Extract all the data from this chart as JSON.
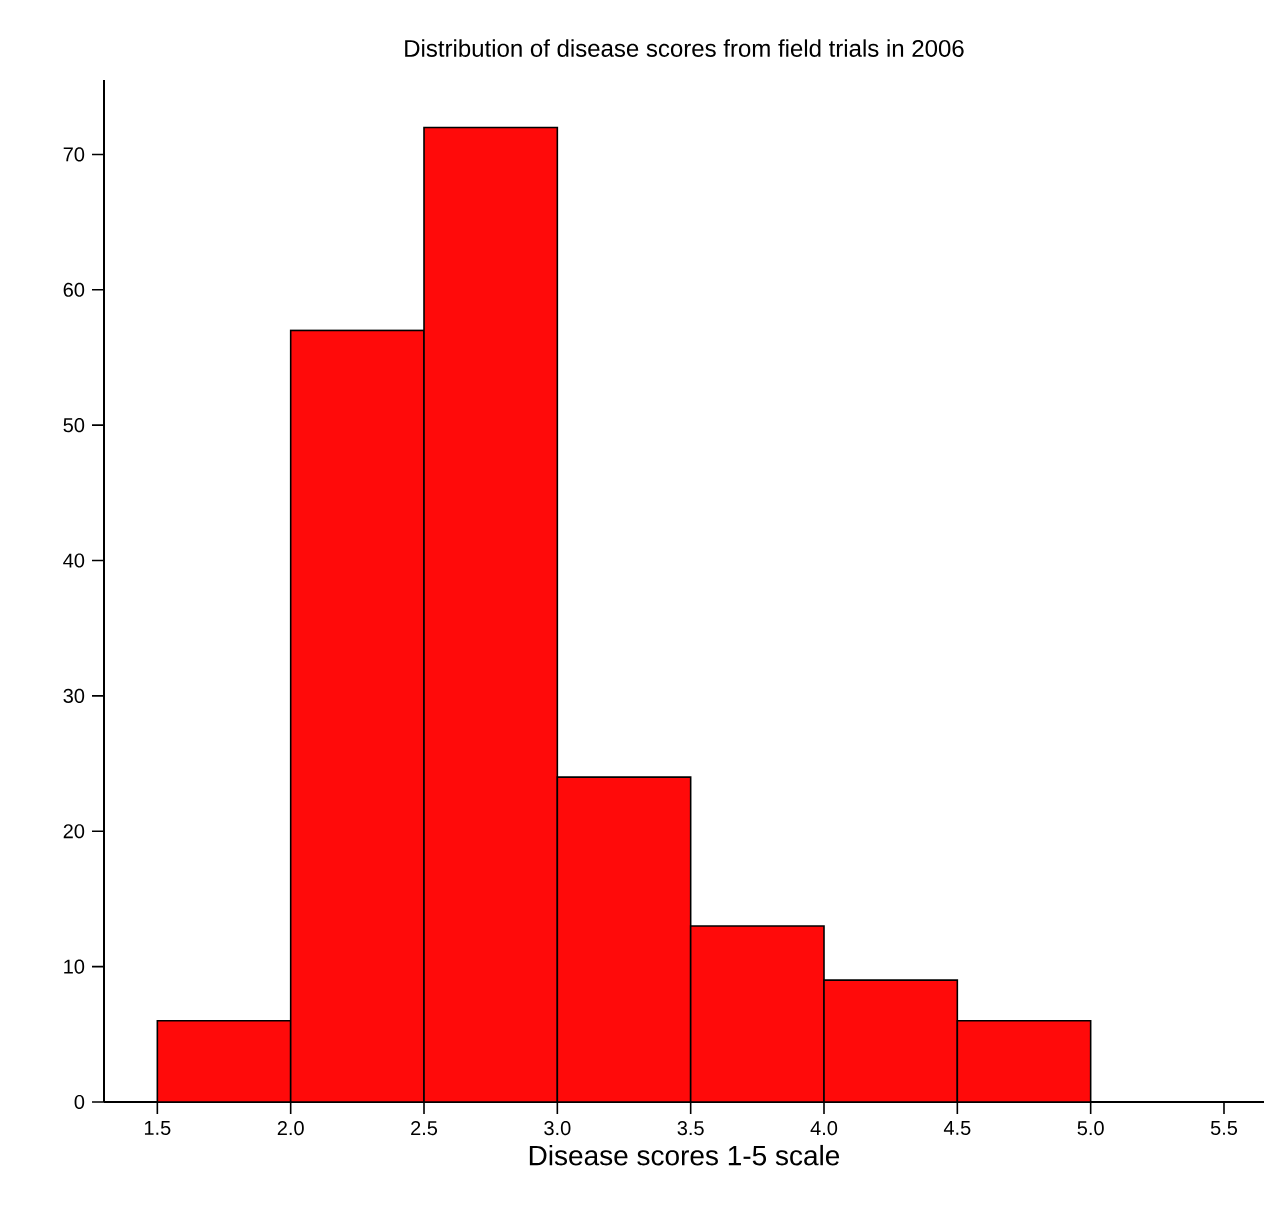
{
  "chart_data": {
    "type": "histogram",
    "title": "Distribution of disease scores from field trials in 2006",
    "xlabel": "Disease scores 1-5 scale",
    "bins": [
      1.5,
      2.0,
      2.5,
      3.0,
      3.5,
      4.0,
      4.5,
      5.0
    ],
    "values": [
      6,
      57,
      72,
      24,
      13,
      9,
      6
    ],
    "color": "#ff0a0a",
    "xlim": [
      1.3,
      5.65
    ],
    "ylim": [
      0,
      75.5
    ],
    "xticks": [
      {
        "value": 1.5,
        "label": "1.5"
      },
      {
        "value": 2.0,
        "label": "2.0"
      },
      {
        "value": 2.5,
        "label": "2.5"
      },
      {
        "value": 3.0,
        "label": "3.0"
      },
      {
        "value": 3.5,
        "label": "3.5"
      },
      {
        "value": 4.0,
        "label": "4.0"
      },
      {
        "value": 4.5,
        "label": "4.5"
      },
      {
        "value": 5.0,
        "label": "5.0"
      },
      {
        "value": 5.5,
        "label": "5.5"
      }
    ],
    "yticks": [
      0,
      10,
      20,
      30,
      40,
      50,
      60,
      70
    ],
    "grid": false
  }
}
